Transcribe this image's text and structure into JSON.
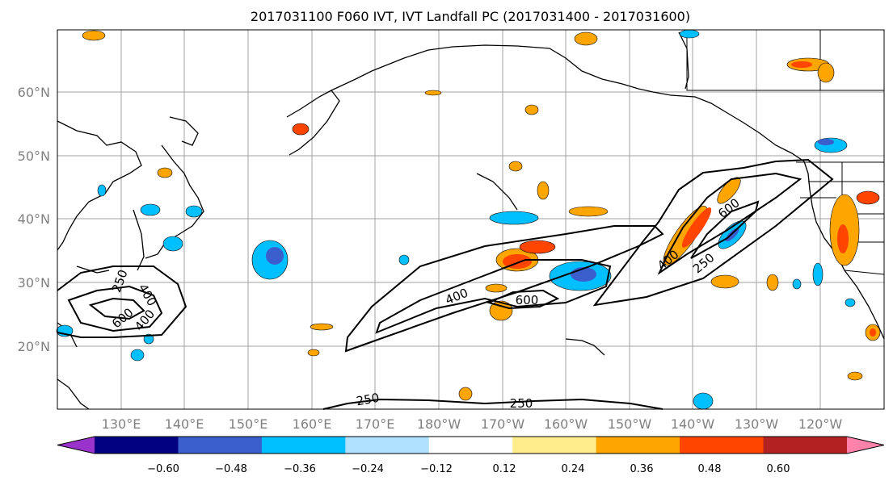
{
  "title": "2017031100 F060 IVT, IVT Landfall PC (2017031400 - 2017031600)",
  "map": {
    "lat_labels": [
      "60°N",
      "50°N",
      "40°N",
      "30°N",
      "20°N"
    ],
    "lon_labels": [
      "130°E",
      "140°E",
      "150°E",
      "160°E",
      "170°E",
      "180°W",
      "170°W",
      "160°W",
      "150°W",
      "140°W",
      "130°W",
      "120°W"
    ],
    "ivt_contour_levels": [
      "250",
      "400",
      "600"
    ],
    "contour_labels": [
      "400",
      "600",
      "600",
      "400",
      "600",
      "400",
      "250",
      "250",
      "250",
      "400",
      "250"
    ]
  },
  "colorbar": {
    "colors": [
      "#9933cc",
      "#000080",
      "#3a5fcd",
      "#00bfff",
      "#b0e2ff",
      "#ffffff",
      "#ffec8b",
      "#ffa500",
      "#ff4500",
      "#b22222",
      "#ff82ab"
    ],
    "tick_labels": [
      "−0.60",
      "−0.48",
      "−0.36",
      "−0.24",
      "−0.12",
      "0.12",
      "0.24",
      "0.36",
      "0.48",
      "0.60"
    ]
  }
}
